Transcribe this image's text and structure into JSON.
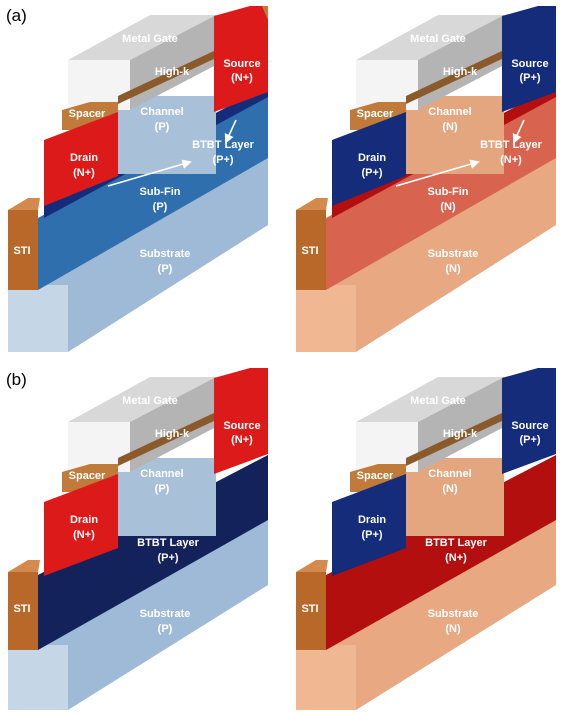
{
  "panel_labels": {
    "a": "(a)",
    "b": "(b)"
  },
  "colors": {
    "gate_top": "#d8d8d8",
    "gate_front": "#f4f4f4",
    "gate_side": "#a8a8a8",
    "highk": "#8a5a2b",
    "spacer": "#c07a3a",
    "spacer_side": "#8e5320",
    "sti": "#b8692a",
    "sti_side": "#7d4416",
    "p_channel": "#a9c1d8",
    "p_body": "#9fbad6",
    "p_body_side": "#7e9bb8",
    "p_subfin": "#2f6fad",
    "n_channel": "#e3a67f",
    "n_body": "#e7a882",
    "n_body_side": "#c88a66",
    "n_subfin": "#d86450",
    "nplus_red": "#dd1a1a",
    "pplus_blue": "#142c7a",
    "btbt_p": "#14225c",
    "btbt_n": "#b40f0f"
  },
  "a_left": {
    "metal_gate": "Metal Gate",
    "high_k": "High-k",
    "source": "Source",
    "source_type": "(N+)",
    "spacer": "Spacer",
    "channel": "Channel",
    "channel_type": "(P)",
    "btbt": "BTBT Layer",
    "btbt_type": "(P+)",
    "drain": "Drain",
    "drain_type": "(N+)",
    "subfin": "Sub-Fin",
    "subfin_type": "(P)",
    "sti": "STI",
    "substrate": "Substrate",
    "substrate_type": "(P)"
  },
  "a_right": {
    "metal_gate": "Metal Gate",
    "high_k": "High-k",
    "source": "Source",
    "source_type": "(P+)",
    "spacer": "Spacer",
    "channel": "Channel",
    "channel_type": "(N)",
    "btbt": "BTBT Layer",
    "btbt_type": "(N+)",
    "drain": "Drain",
    "drain_type": "(P+)",
    "subfin": "Sub-Fin",
    "subfin_type": "(N)",
    "sti": "STI",
    "substrate": "Substrate",
    "substrate_type": "(N)"
  },
  "b_left": {
    "metal_gate": "Metal Gate",
    "high_k": "High-k",
    "source": "Source",
    "source_type": "(N+)",
    "spacer": "Spacer",
    "channel": "Channel",
    "channel_type": "(P)",
    "drain": "Drain",
    "drain_type": "(N+)",
    "btbt": "BTBT Layer",
    "btbt_type": "(P+)",
    "sti": "STI",
    "substrate": "Substrate",
    "substrate_type": "(P)"
  },
  "b_right": {
    "metal_gate": "Metal Gate",
    "high_k": "High-k",
    "source": "Source",
    "source_type": "(P+)",
    "spacer": "Spacer",
    "channel": "Channel",
    "channel_type": "(N)",
    "drain": "Drain",
    "drain_type": "(P+)",
    "btbt": "BTBT Layer",
    "btbt_type": "(N+)",
    "sti": "STI",
    "substrate": "Substrate",
    "substrate_type": "(N)"
  }
}
